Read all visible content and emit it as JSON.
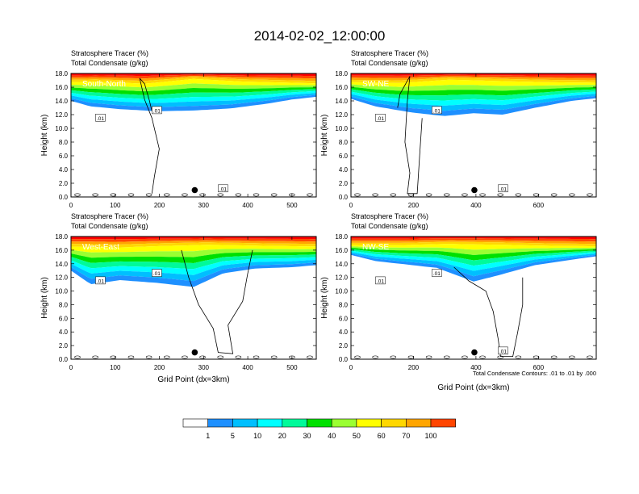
{
  "title": "2014-02-02_12:00:00",
  "x_axis_label": "Grid Point (dx=3km)",
  "y_axis_label": "Height (km)",
  "footnote": "Total Condensate Contours: .01 to .01 by .000",
  "colorbar": {
    "levels": [
      "1",
      "5",
      "10",
      "20",
      "30",
      "40",
      "50",
      "60",
      "70",
      "100"
    ],
    "colors": [
      "#ffffff",
      "#1e90ff",
      "#00bfff",
      "#00ffff",
      "#00fa9a",
      "#00e000",
      "#9aff32",
      "#ffff00",
      "#ffd700",
      "#ffa500",
      "#ff4500",
      "#ff0000"
    ]
  },
  "chart_data": [
    {
      "type": "heatmap",
      "panel_label": "South-North",
      "title_line1": "Stratosphere Tracer   (%)",
      "title_line2": "Total Condensate   (g/kg)",
      "xlim": [
        0,
        555
      ],
      "ylim": [
        0,
        18
      ],
      "xticks": [
        0,
        100,
        200,
        300,
        400,
        500
      ],
      "yticks": [
        "0.0",
        "2.0",
        "4.0",
        "6.0",
        "8.0",
        "10.0",
        "12.0",
        "14.0",
        "16.0",
        "18.0"
      ],
      "contour_labels": [
        ".01",
        ".01",
        ".01"
      ],
      "marker": [
        280,
        1.0
      ],
      "show_xlabel": false,
      "show_footnote": false
    },
    {
      "type": "heatmap",
      "panel_label": "SW-NE",
      "title_line1": "Stratosphere Tracer   (%)",
      "title_line2": "Total Condensate   (g/kg)",
      "xlim": [
        0,
        785
      ],
      "ylim": [
        0,
        18
      ],
      "xticks": [
        0,
        200,
        400,
        600
      ],
      "yticks": [
        "0.0",
        "2.0",
        "4.0",
        "6.0",
        "8.0",
        "10.0",
        "12.0",
        "14.0",
        "16.0",
        "18.0"
      ],
      "contour_labels": [
        ".01",
        ".01",
        ".01"
      ],
      "marker": [
        395,
        1.0
      ],
      "show_xlabel": false,
      "show_footnote": false
    },
    {
      "type": "heatmap",
      "panel_label": "West-East",
      "title_line1": "Stratosphere Tracer   (%)",
      "title_line2": "Total Condensate   (g/kg)",
      "xlim": [
        0,
        555
      ],
      "ylim": [
        0,
        18
      ],
      "xticks": [
        0,
        100,
        200,
        300,
        400,
        500
      ],
      "yticks": [
        "0.0",
        "2.0",
        "4.0",
        "6.0",
        "8.0",
        "10.0",
        "12.0",
        "14.0",
        "16.0",
        "18.0"
      ],
      "contour_labels": [
        ".01",
        ".01"
      ],
      "marker": [
        280,
        1.0
      ],
      "show_xlabel": true,
      "show_footnote": false
    },
    {
      "type": "heatmap",
      "panel_label": "NW-SE",
      "title_line1": "Stratosphere Tracer   (%)",
      "title_line2": "Total Condensate   (g/kg)",
      "xlim": [
        0,
        785
      ],
      "ylim": [
        0,
        18
      ],
      "xticks": [
        0,
        200,
        400,
        600
      ],
      "yticks": [
        "0.0",
        "2.0",
        "4.0",
        "6.0",
        "8.0",
        "10.0",
        "12.0",
        "14.0",
        "16.0",
        "18.0"
      ],
      "contour_labels": [
        ".01",
        ".01",
        ".01"
      ],
      "marker": [
        395,
        1.0
      ],
      "show_xlabel": true,
      "show_footnote": true
    }
  ]
}
